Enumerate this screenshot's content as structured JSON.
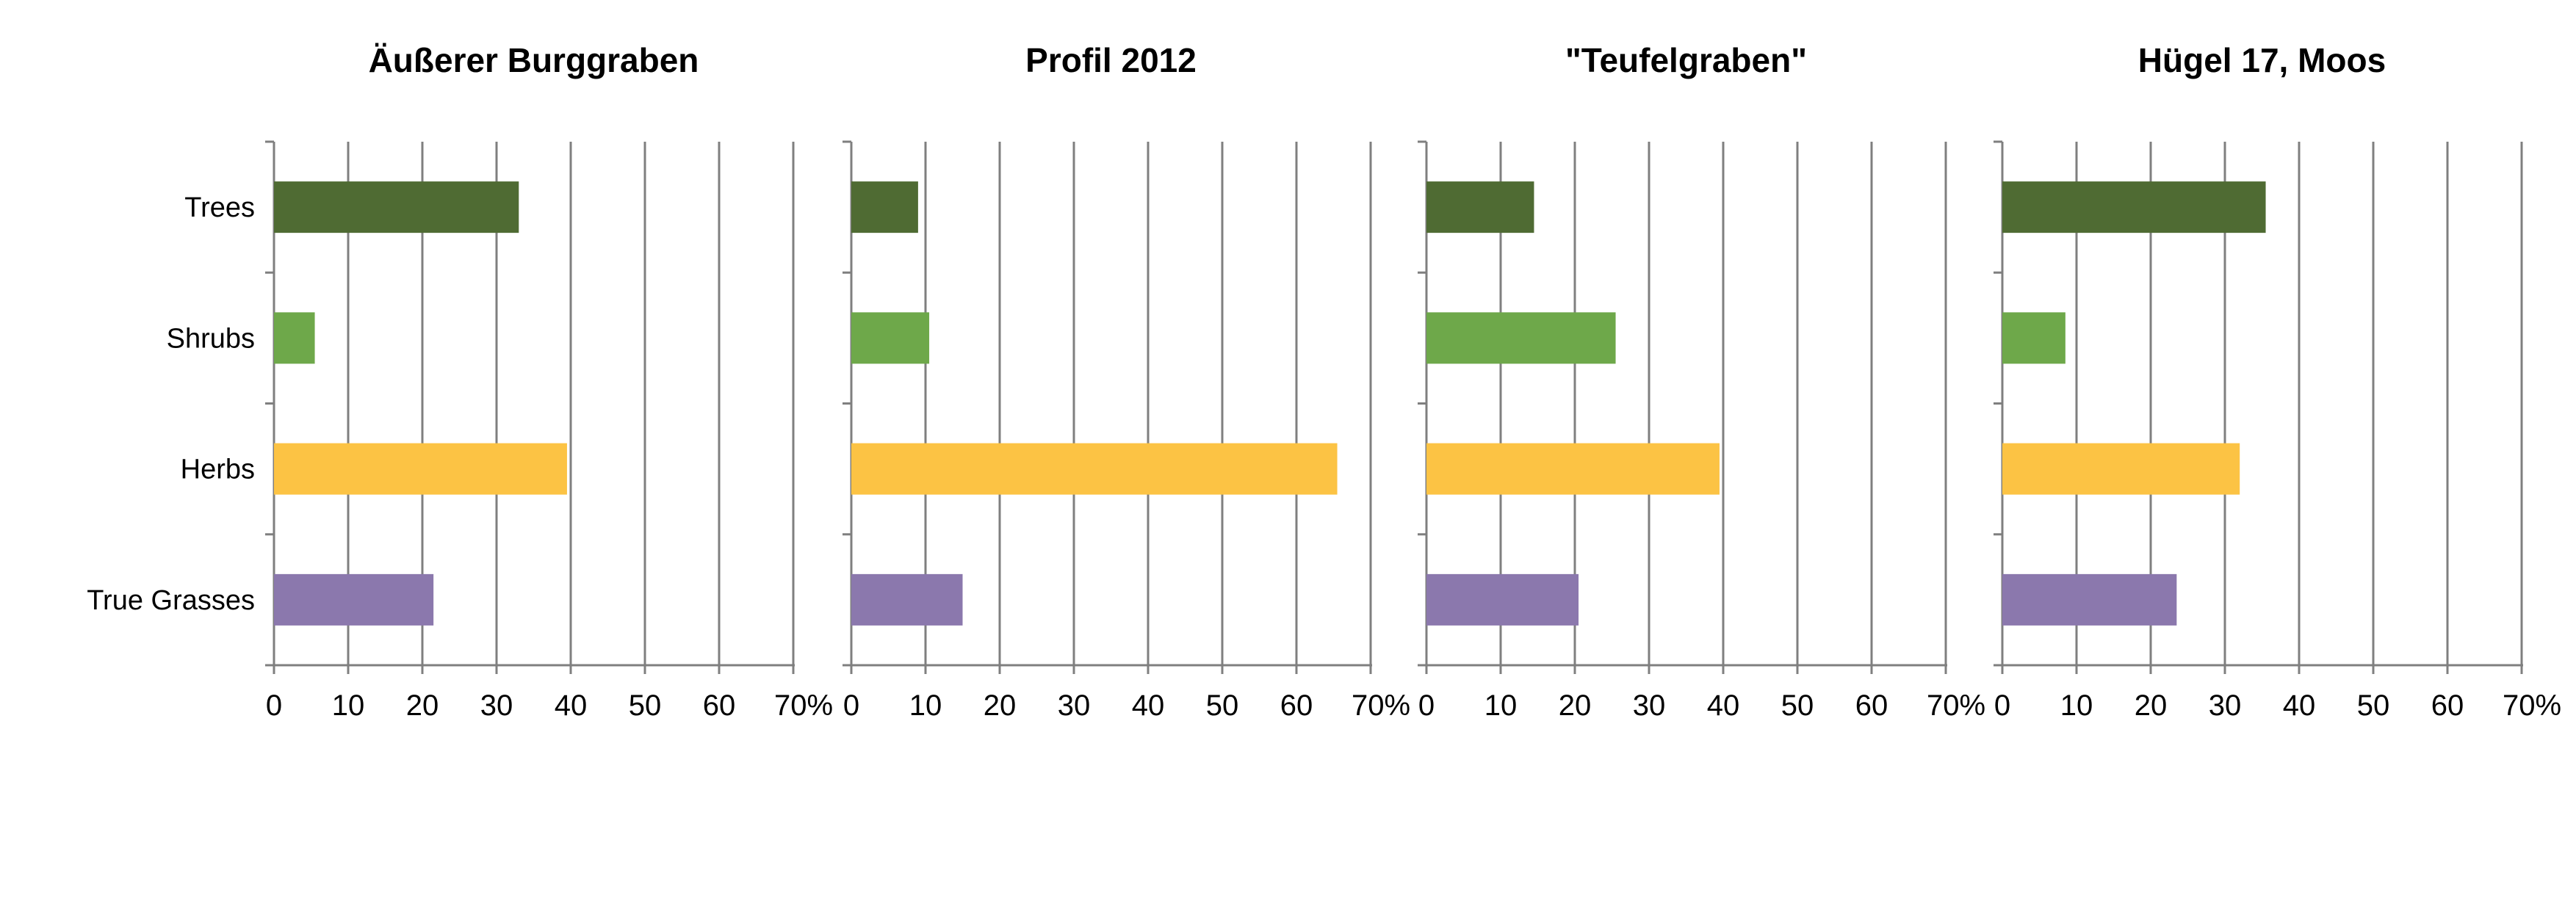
{
  "chart_data": [
    {
      "type": "bar",
      "orientation": "horizontal",
      "title": "Äußerer Burggraben",
      "categories": [
        "Trees",
        "Shrubs",
        "Herbs",
        "True Grasses"
      ],
      "values": [
        33,
        5.5,
        39.5,
        21.5
      ],
      "xlim": [
        0,
        70
      ],
      "x_ticks": [
        "0",
        "10",
        "20",
        "30",
        "40",
        "50",
        "60",
        "70%"
      ],
      "grid": "vertical"
    },
    {
      "type": "bar",
      "orientation": "horizontal",
      "title": "Profil 2012",
      "categories": [
        "Trees",
        "Shrubs",
        "Herbs",
        "True Grasses"
      ],
      "values": [
        9,
        10.5,
        65.5,
        15
      ],
      "xlim": [
        0,
        70
      ],
      "x_ticks": [
        "0",
        "10",
        "20",
        "30",
        "40",
        "50",
        "60",
        "70%"
      ],
      "grid": "vertical"
    },
    {
      "type": "bar",
      "orientation": "horizontal",
      "title": "\"Teufelgraben\"",
      "categories": [
        "Trees",
        "Shrubs",
        "Herbs",
        "True Grasses"
      ],
      "values": [
        14.5,
        25.5,
        39.5,
        20.5
      ],
      "xlim": [
        0,
        70
      ],
      "x_ticks": [
        "0",
        "10",
        "20",
        "30",
        "40",
        "50",
        "60",
        "70%"
      ],
      "grid": "vertical"
    },
    {
      "type": "bar",
      "orientation": "horizontal",
      "title": "Hügel 17, Moos",
      "categories": [
        "Trees",
        "Shrubs",
        "Herbs",
        "True Grasses"
      ],
      "values": [
        35.5,
        8.5,
        32,
        23.5
      ],
      "xlim": [
        0,
        70
      ],
      "x_ticks": [
        "0",
        "10",
        "20",
        "30",
        "40",
        "50",
        "60",
        "70%"
      ],
      "grid": "vertical"
    }
  ],
  "colors": {
    "Trees": "#4f6b33",
    "Shrubs": "#6ea84a",
    "Herbs": "#fcc344",
    "True Grasses": "#8b78ad",
    "grid": "#7f7f7f"
  }
}
